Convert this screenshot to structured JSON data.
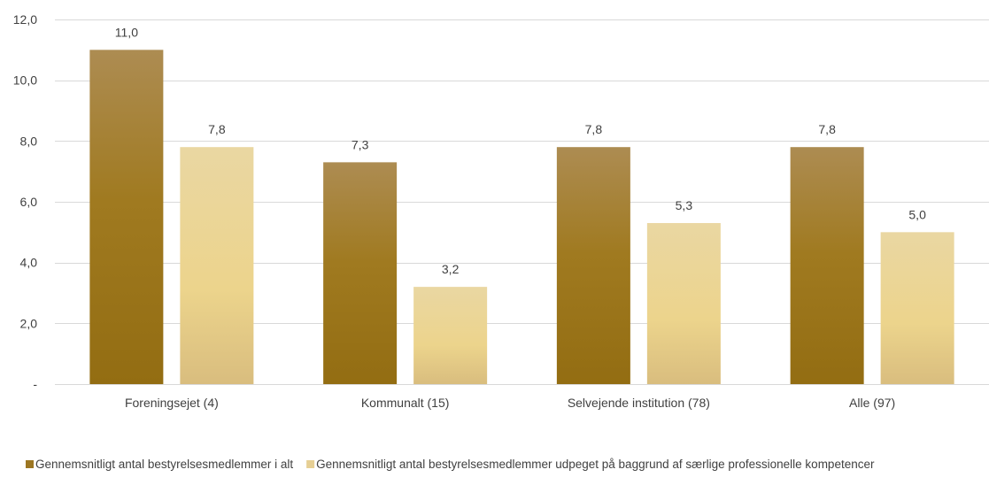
{
  "chart_data": {
    "type": "bar",
    "title": "",
    "xlabel": "",
    "ylabel": "",
    "categories": [
      "Foreningsejet (4)",
      "Kommunalt (15)",
      "Selvejende institution (78)",
      "Alle (97)"
    ],
    "series": [
      {
        "name": "Gennemsnitligt antal bestyrelsesmedlemmer i alt",
        "values": [
          11.0,
          7.3,
          7.8,
          7.8
        ],
        "labels": [
          "11,0",
          "7,3",
          "7,8",
          "7,8"
        ],
        "color": "#9c7622"
      },
      {
        "name": "Gennemsnitligt antal bestyrelsesmedlemmer udpeget på baggrund af særlige professionelle kompetencer",
        "values": [
          7.8,
          3.2,
          5.3,
          5.0
        ],
        "labels": [
          "7,8",
          "3,2",
          "5,3",
          "5,0"
        ],
        "color": "#e6cf94"
      }
    ],
    "ylim": [
      0,
      12
    ],
    "yticks": [
      0,
      2,
      4,
      6,
      8,
      10,
      12
    ],
    "ytick_labels": [
      "-",
      "2,0",
      "4,0",
      "6,0",
      "8,0",
      "10,0",
      "12,0"
    ],
    "grid": true,
    "legend_position": "bottom"
  }
}
